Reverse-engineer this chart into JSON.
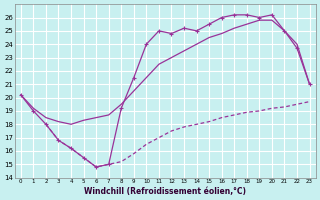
{
  "bg_color": "#c8f0f0",
  "grid_color": "#ffffff",
  "line_color": "#993399",
  "xlabel": "Windchill (Refroidissement éolien,°C)",
  "xlim": [
    -0.5,
    23.5
  ],
  "ylim": [
    14,
    27
  ],
  "yticks": [
    14,
    15,
    16,
    17,
    18,
    19,
    20,
    21,
    22,
    23,
    24,
    25,
    26
  ],
  "xticks": [
    0,
    1,
    2,
    3,
    4,
    5,
    6,
    7,
    8,
    9,
    10,
    11,
    12,
    13,
    14,
    15,
    16,
    17,
    18,
    19,
    20,
    21,
    22,
    23
  ],
  "line_spiky_x": [
    0,
    1,
    2,
    3,
    4,
    5,
    6,
    7,
    8,
    9,
    10,
    11,
    12,
    13,
    14,
    15,
    16,
    17,
    18,
    19,
    20,
    21,
    22,
    23
  ],
  "line_spiky_y": [
    20.2,
    19.0,
    18.0,
    16.8,
    16.2,
    15.5,
    14.8,
    15.0,
    19.2,
    21.5,
    24.0,
    25.0,
    24.8,
    25.2,
    25.0,
    25.5,
    26.0,
    26.2,
    26.2,
    26.0,
    26.2,
    25.0,
    23.7,
    21.0
  ],
  "line_mid_x": [
    0,
    1,
    2,
    3,
    4,
    5,
    6,
    7,
    8,
    9,
    10,
    11,
    12,
    13,
    14,
    15,
    16,
    17,
    18,
    19,
    20,
    21,
    22,
    23
  ],
  "line_mid_y": [
    20.2,
    19.2,
    18.5,
    18.2,
    18.0,
    18.3,
    18.5,
    18.7,
    19.5,
    20.5,
    21.5,
    22.5,
    23.0,
    23.5,
    24.0,
    24.5,
    24.8,
    25.2,
    25.5,
    25.8,
    25.8,
    25.0,
    24.0,
    21.0
  ],
  "line_dashed_x": [
    2,
    3,
    4,
    5,
    6,
    7,
    8,
    9,
    10,
    11,
    12,
    13,
    14,
    15,
    16,
    17,
    18,
    19,
    20,
    21,
    22,
    23
  ],
  "line_dashed_y": [
    18.0,
    16.8,
    16.2,
    15.5,
    14.8,
    15.0,
    15.2,
    15.8,
    16.5,
    17.0,
    17.5,
    17.8,
    18.0,
    18.2,
    18.5,
    18.7,
    18.9,
    19.0,
    19.2,
    19.3,
    19.5,
    19.7
  ]
}
